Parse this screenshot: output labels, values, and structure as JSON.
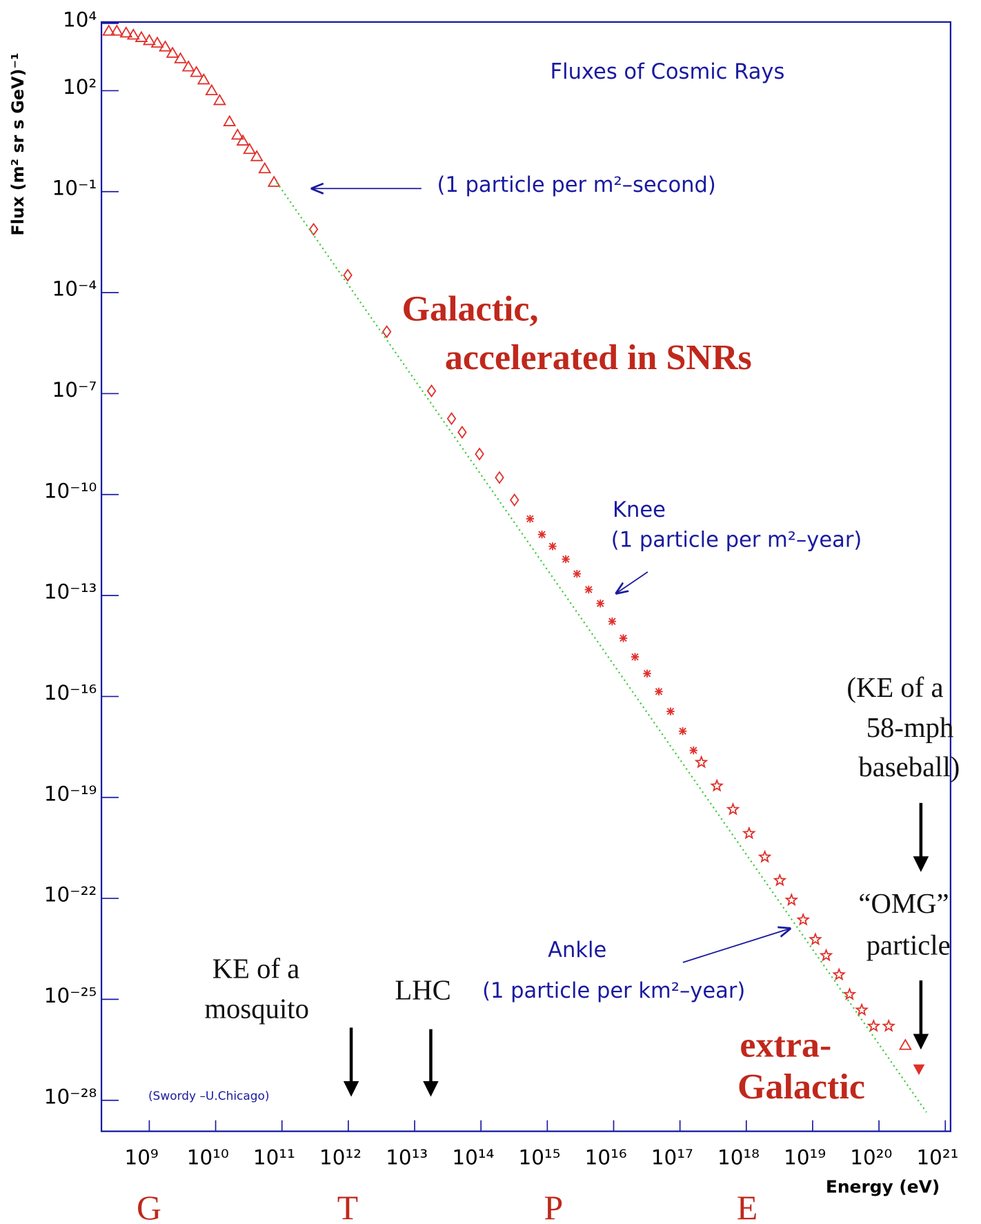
{
  "chart_data": {
    "type": "scatter",
    "title": "Fluxes of Cosmic Rays",
    "x_label": "Energy (eV)",
    "y_label": "Flux (m² sr s GeV)⁻¹",
    "x_log": true,
    "y_log": true,
    "xlim": [
      190000000.0,
      1.2e+21
    ],
    "ylim": [
      1.2e-29,
      11000.0
    ],
    "xticks": [
      {
        "value": 1000000000.0,
        "label": "10⁹"
      },
      {
        "value": 10000000000.0,
        "label": "10¹⁰"
      },
      {
        "value": 100000000000.0,
        "label": "10¹¹"
      },
      {
        "value": 1000000000000.0,
        "label": "10¹²"
      },
      {
        "value": 10000000000000.0,
        "label": "10¹³"
      },
      {
        "value": 100000000000000.0,
        "label": "10¹⁴"
      },
      {
        "value": 1000000000000000.0,
        "label": "10¹⁵"
      },
      {
        "value": 1e+16,
        "label": "10¹⁶"
      },
      {
        "value": 1e+17,
        "label": "10¹⁷"
      },
      {
        "value": 1e+18,
        "label": "10¹⁸"
      },
      {
        "value": 1e+19,
        "label": "10¹⁹"
      },
      {
        "value": 1e+20,
        "label": "10²⁰"
      },
      {
        "value": 1e+21,
        "label": "10²¹"
      }
    ],
    "yticks": [
      {
        "value": 10000.0,
        "label": "10⁴"
      },
      {
        "value": 100.0,
        "label": "10²"
      },
      {
        "value": 0.1,
        "label": "10⁻¹"
      },
      {
        "value": 0.0001,
        "label": "10⁻⁴"
      },
      {
        "value": 1e-07,
        "label": "10⁻⁷"
      },
      {
        "value": 1e-10,
        "label": "10⁻¹⁰"
      },
      {
        "value": 1e-13,
        "label": "10⁻¹³"
      },
      {
        "value": 1e-16,
        "label": "10⁻¹⁶"
      },
      {
        "value": 1e-19,
        "label": "10⁻¹⁹"
      },
      {
        "value": 1e-22,
        "label": "10⁻²²"
      },
      {
        "value": 1e-25,
        "label": "10⁻²⁵"
      },
      {
        "value": 1e-28,
        "label": "10⁻²⁸"
      }
    ],
    "series": [
      {
        "marker": "triangle",
        "color": "#e0302a",
        "x": [
          245000000.0,
          324000000.0,
          447000000.0,
          575000000.0,
          759000000.0,
          1000000000.0,
          1320000000.0,
          1740000000.0,
          2240000000.0,
          2950000000.0,
          3890000000.0,
          5130000000.0,
          6610000000.0,
          8710000000.0,
          11500000000.0,
          16200000000.0,
          21400000000.0,
          25700000000.0,
          32400000000.0,
          41700000000.0,
          55000000000.0,
          75900000000.0
        ],
        "values": [
          5900.0,
          5900.0,
          5200.0,
          4500.0,
          3800.0,
          3100.0,
          2600.0,
          2000.0,
          1300.0,
          890.0,
          510.0,
          350.0,
          210.0,
          100.0,
          51,
          12,
          4.8,
          3.2,
          1.8,
          1.1,
          0.48,
          0.19
        ]
      },
      {
        "marker": "diamond",
        "color": "#e0302a",
        "x": [
          300000000000.0,
          980000000000.0,
          3800000000000.0,
          18000000000000.0,
          36000000000000.0,
          52000000000000.0,
          95000000000000.0,
          190000000000000.0,
          320000000000000.0
        ],
        "values": [
          0.0076,
          0.00033,
          6.9e-06,
          1.2e-07,
          1.8e-08,
          7.1e-09,
          1.6e-09,
          3.2e-10,
          6.9e-11
        ]
      },
      {
        "marker": "asterisk",
        "color": "#e0302a",
        "x": [
          550000000000000.0,
          830000000000000.0,
          1200000000000000.0,
          1900000000000000.0,
          2800000000000000.0,
          4200000000000000.0,
          6300000000000000.0,
          9500000000000000.0,
          1.4e+16,
          2.1e+16,
          3.2e+16,
          4.8e+16,
          7.2e+16,
          1.1e+17,
          1.6e+17
        ],
        "values": [
          1.9e-11,
          6.5e-12,
          2.9e-12,
          1.2e-12,
          4.4e-13,
          1.5e-13,
          5.8e-14,
          1.7e-14,
          5.4e-15,
          1.5e-15,
          4.8e-16,
          1.4e-16,
          3.6e-17,
          9.3e-18,
          2.5e-18
        ]
      },
      {
        "marker": "star",
        "color": "#e0302a",
        "x": [
          2.1e+17,
          3.6e+17,
          6.3e+17,
          1.1e+18,
          1.9e+18,
          3.2e+18,
          4.8e+18,
          7.2e+18,
          1.1e+19,
          1.6e+19,
          2.5e+19,
          3.6e+19,
          5.5e+19,
          8.3e+19,
          1.4e+20
        ],
        "values": [
          1.1e-18,
          2.2e-19,
          4.4e-20,
          8.5e-21,
          1.7e-21,
          3.4e-22,
          8.9e-23,
          2.3e-23,
          6e-24,
          2e-24,
          5.4e-25,
          1.4e-25,
          4.8e-26,
          1.6e-26,
          1.6e-26
        ]
      },
      {
        "marker": "triangle",
        "color": "#e0302a",
        "x": [
          2.5e+20
        ],
        "values": [
          4.3e-27
        ]
      },
      {
        "marker": "triangle-down-filled",
        "color": "#e0302a",
        "x": [
          4e+20
        ],
        "values": [
          8.5e-28
        ]
      },
      {
        "marker": "dotted-line",
        "color": "#44cc44",
        "x": [
          83000000000.0,
          5.2e+20
        ],
        "values": [
          0.19,
          4.4e-29
        ]
      }
    ],
    "annotations": [
      "(1 particle per m²–second)",
      "Knee",
      "(1 particle per m²–year)",
      "Ankle",
      "(1 particle per km²–year)",
      "(Swordy –U.Chicago)",
      "Galactic,",
      "accelerated in SNRs",
      "extra-",
      "Galactic",
      "KE of a",
      "mosquito",
      "LHC",
      "(KE of a",
      "58-mph",
      "baseball)",
      "“OMG”",
      "particle",
      "G",
      "T",
      "P",
      "E"
    ]
  }
}
